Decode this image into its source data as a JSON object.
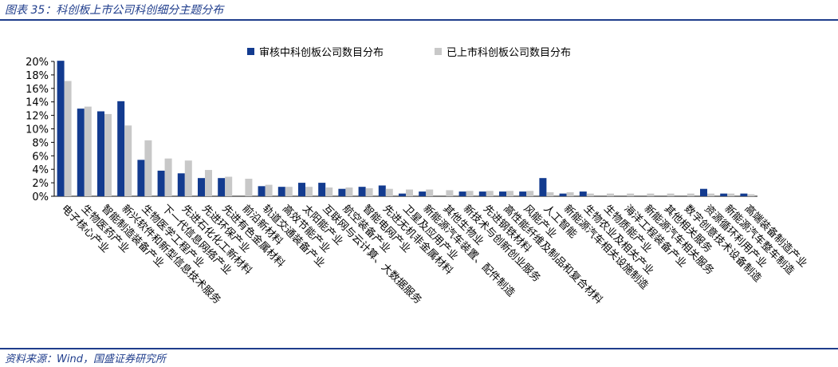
{
  "caption": "图表 35：科创板上市公司科创细分主题分布",
  "source": "资料来源：Wind，国盛证券研究所",
  "colors": {
    "series_review": "#133b8f",
    "series_listed": "#c8c8c8",
    "rule": "#1f3d8c"
  },
  "chart_data": {
    "type": "bar",
    "ylim": [
      0,
      20
    ],
    "yticks": [
      "0%",
      "2%",
      "4%",
      "6%",
      "8%",
      "10%",
      "12%",
      "14%",
      "16%",
      "18%",
      "20%"
    ],
    "legend_position": "top-center",
    "grid": false,
    "categories": [
      "电子核心产业",
      "生物医药产业",
      "智能制造装备产业",
      "新兴软件和新型信息技术服务",
      "生物医学工程产业",
      "下一代信息网络产业",
      "先进石化化工新材料",
      "先进环保产业",
      "先进有色金属材料",
      "前沿新材料",
      "轨道交通装备产业",
      "高效节能产业",
      "太阳能产业",
      "互联网与云计算、大数据服务",
      "航空装备产业",
      "智能电网产业",
      "先进无机非金属材料",
      "卫星及应用产业",
      "新能源汽车装置、配件制造",
      "其他生物业",
      "新技术与创新创业服务",
      "先进钢铁材料",
      "高性能纤维及制品和复合材料",
      "风能产业",
      "人工智能",
      "新能源汽车相关设施制造",
      "生物农业及相关产业",
      "生物质能产业",
      "海洋工程装备产业",
      "新能源汽车相关服务",
      "其他相关服务",
      "数字创意技术设备制造",
      "资源循环利用产业",
      "新能源汽车整车制造",
      "高端装备制造产业"
    ],
    "series": [
      {
        "name": "审核中科创板公司数目分布",
        "values": [
          20.1,
          13.0,
          12.6,
          14.1,
          5.4,
          3.8,
          3.4,
          2.7,
          2.7,
          0.0,
          1.5,
          1.4,
          2.0,
          2.0,
          1.1,
          1.4,
          1.6,
          0.4,
          0.7,
          0.0,
          0.7,
          0.7,
          0.7,
          0.7,
          2.7,
          0.4,
          0.7,
          0.0,
          0.0,
          0.0,
          0.0,
          0.0,
          1.1,
          0.4,
          0.4
        ]
      },
      {
        "name": "已上市科创板公司数目分布",
        "values": [
          17.1,
          13.3,
          12.2,
          10.5,
          8.3,
          5.6,
          5.3,
          3.9,
          2.9,
          2.6,
          1.7,
          1.4,
          1.4,
          1.3,
          1.3,
          1.2,
          1.1,
          1.0,
          1.0,
          0.9,
          0.8,
          0.8,
          0.8,
          0.8,
          0.6,
          0.6,
          0.4,
          0.4,
          0.4,
          0.4,
          0.4,
          0.4,
          0.4,
          0.4,
          0.3
        ]
      }
    ]
  }
}
